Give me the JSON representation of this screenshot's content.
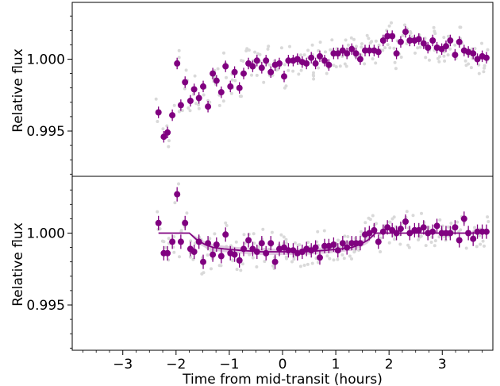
{
  "chart_data": [
    {
      "type": "scatter",
      "panel": "top",
      "title": "",
      "xlabel": "",
      "ylabel": "Relative flux",
      "xlim": [
        -3.95,
        3.95
      ],
      "ylim": [
        0.99185,
        1.00395
      ],
      "yticks": [
        0.995,
        1.0
      ],
      "ytick_labels": [
        "0.995",
        "1.000"
      ],
      "xticks": [
        -3,
        -2,
        -1,
        0,
        1,
        2,
        3
      ],
      "grid": false,
      "colors": {
        "binned": "#800080",
        "raw": "#d9d9d9"
      },
      "series": [
        {
          "kind": "binned",
          "x": [
            -2.33,
            -2.23,
            -2.16,
            -2.07,
            -1.98,
            -1.91,
            -1.83,
            -1.73,
            -1.66,
            -1.57,
            -1.49,
            -1.4,
            -1.31,
            -1.24,
            -1.15,
            -1.07,
            -0.98,
            -0.9,
            -0.81,
            -0.73,
            -0.64,
            -0.56,
            -0.48,
            -0.39,
            -0.31,
            -0.22,
            -0.14,
            -0.06,
            0.03,
            0.11,
            0.2,
            0.28,
            0.37,
            0.45,
            0.54,
            0.62,
            0.7,
            0.79,
            0.87,
            0.96,
            1.04,
            1.13,
            1.21,
            1.3,
            1.38,
            1.46,
            1.55,
            1.63,
            1.72,
            1.8,
            1.89,
            1.97,
            2.06,
            2.14,
            2.22,
            2.31,
            2.39,
            2.48,
            2.56,
            2.65,
            2.73,
            2.82,
            2.9,
            2.99,
            3.07,
            3.15,
            3.24,
            3.32,
            3.41,
            3.49,
            3.58,
            3.66,
            3.75,
            3.83
          ],
          "y": [
            0.9963,
            0.9946,
            0.9949,
            0.9961,
            0.9997,
            0.9968,
            0.9984,
            0.9971,
            0.9979,
            0.9973,
            0.9981,
            0.9967,
            0.999,
            0.9985,
            0.9977,
            0.9995,
            0.9981,
            0.9991,
            0.998,
            0.999,
            0.9997,
            0.9995,
            0.9999,
            0.9994,
            0.9999,
            0.9991,
            0.9996,
            0.9997,
            0.9988,
            0.9999,
            0.9999,
            1.0,
            0.9998,
            0.9997,
            1.0001,
            0.9997,
            1.0002,
            0.9999,
            0.9996,
            1.0004,
            1.0004,
            1.0006,
            1.0004,
            1.0007,
            1.0004,
            1.0,
            1.0006,
            1.0006,
            1.0006,
            1.0005,
            1.0013,
            1.0016,
            1.0016,
            1.0004,
            1.0012,
            1.0019,
            1.0013,
            1.0013,
            1.0014,
            1.0011,
            1.0008,
            1.0013,
            1.0008,
            1.0007,
            1.0009,
            1.0013,
            1.0003,
            1.0012,
            1.0006,
            1.0005,
            1.0004,
            1.0,
            1.0002,
            1.0001
          ],
          "yerr": 0.0004
        }
      ]
    },
    {
      "type": "scatter",
      "panel": "bottom",
      "title": "",
      "xlabel": "Time from mid-transit (hours)",
      "ylabel": "Relative flux",
      "xlim": [
        -3.95,
        3.95
      ],
      "ylim": [
        0.99185,
        1.00395
      ],
      "yticks": [
        0.995,
        1.0
      ],
      "ytick_labels": [
        "0.995",
        "1.000"
      ],
      "xticks": [
        -3,
        -2,
        -1,
        0,
        1,
        2,
        3
      ],
      "xtick_labels": [
        "−3",
        "−2",
        "−1",
        "0",
        "1",
        "2",
        "3"
      ],
      "grid": false,
      "colors": {
        "binned": "#800080",
        "model": "#800080",
        "model_band": "#d8bfd8",
        "raw": "#d9d9d9"
      },
      "series": [
        {
          "kind": "binned",
          "x": [
            -2.33,
            -2.23,
            -2.16,
            -2.07,
            -1.98,
            -1.91,
            -1.83,
            -1.73,
            -1.66,
            -1.57,
            -1.49,
            -1.4,
            -1.31,
            -1.24,
            -1.15,
            -1.07,
            -0.98,
            -0.9,
            -0.81,
            -0.73,
            -0.64,
            -0.56,
            -0.48,
            -0.39,
            -0.31,
            -0.22,
            -0.14,
            -0.06,
            0.03,
            0.11,
            0.2,
            0.28,
            0.37,
            0.45,
            0.54,
            0.62,
            0.7,
            0.79,
            0.87,
            0.96,
            1.04,
            1.13,
            1.21,
            1.3,
            1.38,
            1.46,
            1.55,
            1.63,
            1.72,
            1.8,
            1.89,
            1.97,
            2.06,
            2.14,
            2.22,
            2.31,
            2.39,
            2.48,
            2.56,
            2.65,
            2.73,
            2.82,
            2.9,
            2.99,
            3.07,
            3.15,
            3.24,
            3.32,
            3.41,
            3.49,
            3.58,
            3.66,
            3.75,
            3.83
          ],
          "y": [
            1.0007,
            0.9986,
            0.9986,
            0.9994,
            1.0027,
            0.9994,
            1.0007,
            0.9989,
            0.9987,
            0.9994,
            0.998,
            0.9993,
            0.9985,
            0.9992,
            0.9984,
            0.9999,
            0.9986,
            0.9985,
            0.9981,
            0.9989,
            0.9995,
            0.9989,
            0.9987,
            0.9993,
            0.9986,
            0.9993,
            0.998,
            0.9989,
            0.999,
            0.9988,
            0.9988,
            0.9986,
            0.9987,
            0.9989,
            0.9988,
            0.999,
            0.9983,
            0.9991,
            0.9991,
            0.9992,
            0.9988,
            0.9993,
            0.999,
            0.9993,
            0.9993,
            0.9993,
            0.9999,
            1.0,
            1.0002,
            0.9994,
            1.0001,
            1.0004,
            1.0002,
            1.0,
            1.0003,
            1.0008,
            1.0,
            1.0002,
            1.0002,
            1.0004,
            1.0,
            1.0001,
            1.0005,
            1.0,
            1.0,
            1.0,
            1.0004,
            0.9995,
            1.001,
            1.0,
            0.9996,
            1.0001,
            1.0001,
            1.0001
          ],
          "yerr": 0.0005
        },
        {
          "kind": "model",
          "x": [
            -2.33,
            -1.75,
            -1.6,
            -1.45,
            -1.3,
            -1.1,
            -0.8,
            -0.4,
            0.0,
            0.4,
            0.8,
            1.1,
            1.3,
            1.45,
            1.6,
            1.75,
            2.0,
            3.0,
            3.85
          ],
          "y": [
            1.0,
            1.0,
            0.9995,
            0.9992,
            0.999,
            0.9989,
            0.9988,
            0.9987,
            0.9987,
            0.9987,
            0.9988,
            0.9989,
            0.999,
            0.9992,
            0.9995,
            1.0,
            1.0,
            1.0,
            1.0
          ]
        }
      ]
    }
  ],
  "axis_text": {
    "xlabel": "Time from mid-transit (hours)",
    "ylabel_top": "Relative flux",
    "ylabel_bottom": "Relative flux"
  }
}
